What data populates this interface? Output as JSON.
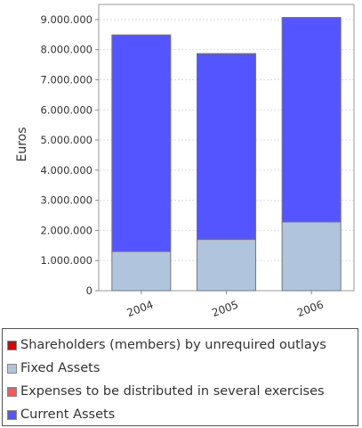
{
  "chart_data": {
    "type": "bar",
    "stacked": true,
    "categories": [
      "2004",
      "2005",
      "2006"
    ],
    "series": [
      {
        "name": "Shareholders (members) by unrequired outlays",
        "color": "#e00000",
        "values": [
          0,
          0,
          0
        ]
      },
      {
        "name": "Fixed Assets",
        "color": "#b0c4de",
        "values": [
          1300000,
          1700000,
          2280000
        ]
      },
      {
        "name": "Expenses to be distributed in several exercises",
        "color": "#ff5555",
        "values": [
          0,
          0,
          0
        ]
      },
      {
        "name": "Current Assets",
        "color": "#5555ff",
        "values": [
          7190000,
          6170000,
          6790000
        ]
      }
    ],
    "title": "",
    "xlabel": "",
    "ylabel": "Euros",
    "ylim": [
      0,
      9500000
    ],
    "yticks": [
      0,
      1000000,
      2000000,
      3000000,
      4000000,
      5000000,
      6000000,
      7000000,
      8000000,
      9000000
    ],
    "ytick_labels": [
      "0",
      "1.000.000",
      "2.000.000",
      "3.000.000",
      "4.000.000",
      "5.000.000",
      "6.000.000",
      "7.000.000",
      "8.000.000",
      "9.000.000"
    ],
    "grid": true,
    "legend_position": "bottom"
  }
}
